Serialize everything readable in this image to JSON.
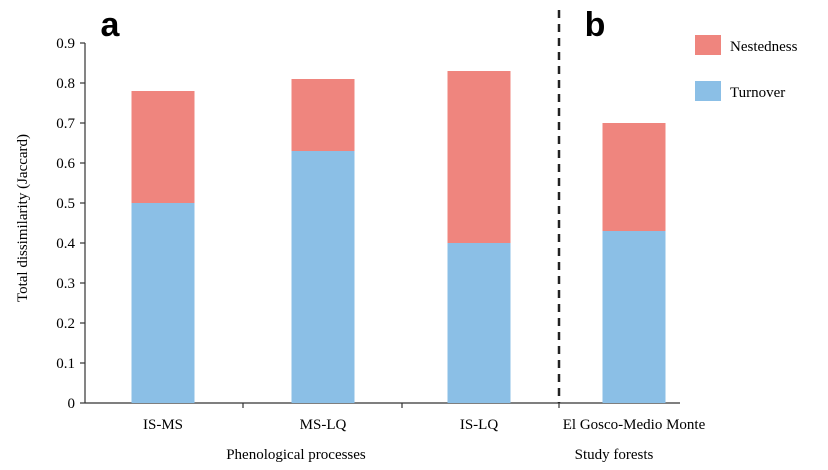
{
  "chart_data": {
    "type": "bar",
    "stacked": true,
    "ylabel": "Total dissimilarity (Jaccard)",
    "ylim": [
      0,
      0.9
    ],
    "yticks": [
      "0",
      "0.1",
      "0.2",
      "0.3",
      "0.4",
      "0.5",
      "0.6",
      "0.7",
      "0.8",
      "0.9"
    ],
    "categories": [
      "IS-MS",
      "MS-LQ",
      "IS-LQ",
      "El Gosco-Medio Monte"
    ],
    "series": [
      {
        "name": "Turnover",
        "color": "#8bbfe6",
        "values": [
          0.5,
          0.63,
          0.4,
          0.43
        ]
      },
      {
        "name": "Nestedness",
        "color": "#ef857e",
        "values": [
          0.28,
          0.18,
          0.43,
          0.27
        ]
      }
    ],
    "legend_position": "top-right",
    "group_labels": [
      "Phenological processes",
      "Study forests"
    ],
    "panel_labels": [
      "a",
      "b"
    ],
    "divider": "dashed vertical line between IS-LQ and El Gosco-Medio Monte"
  }
}
